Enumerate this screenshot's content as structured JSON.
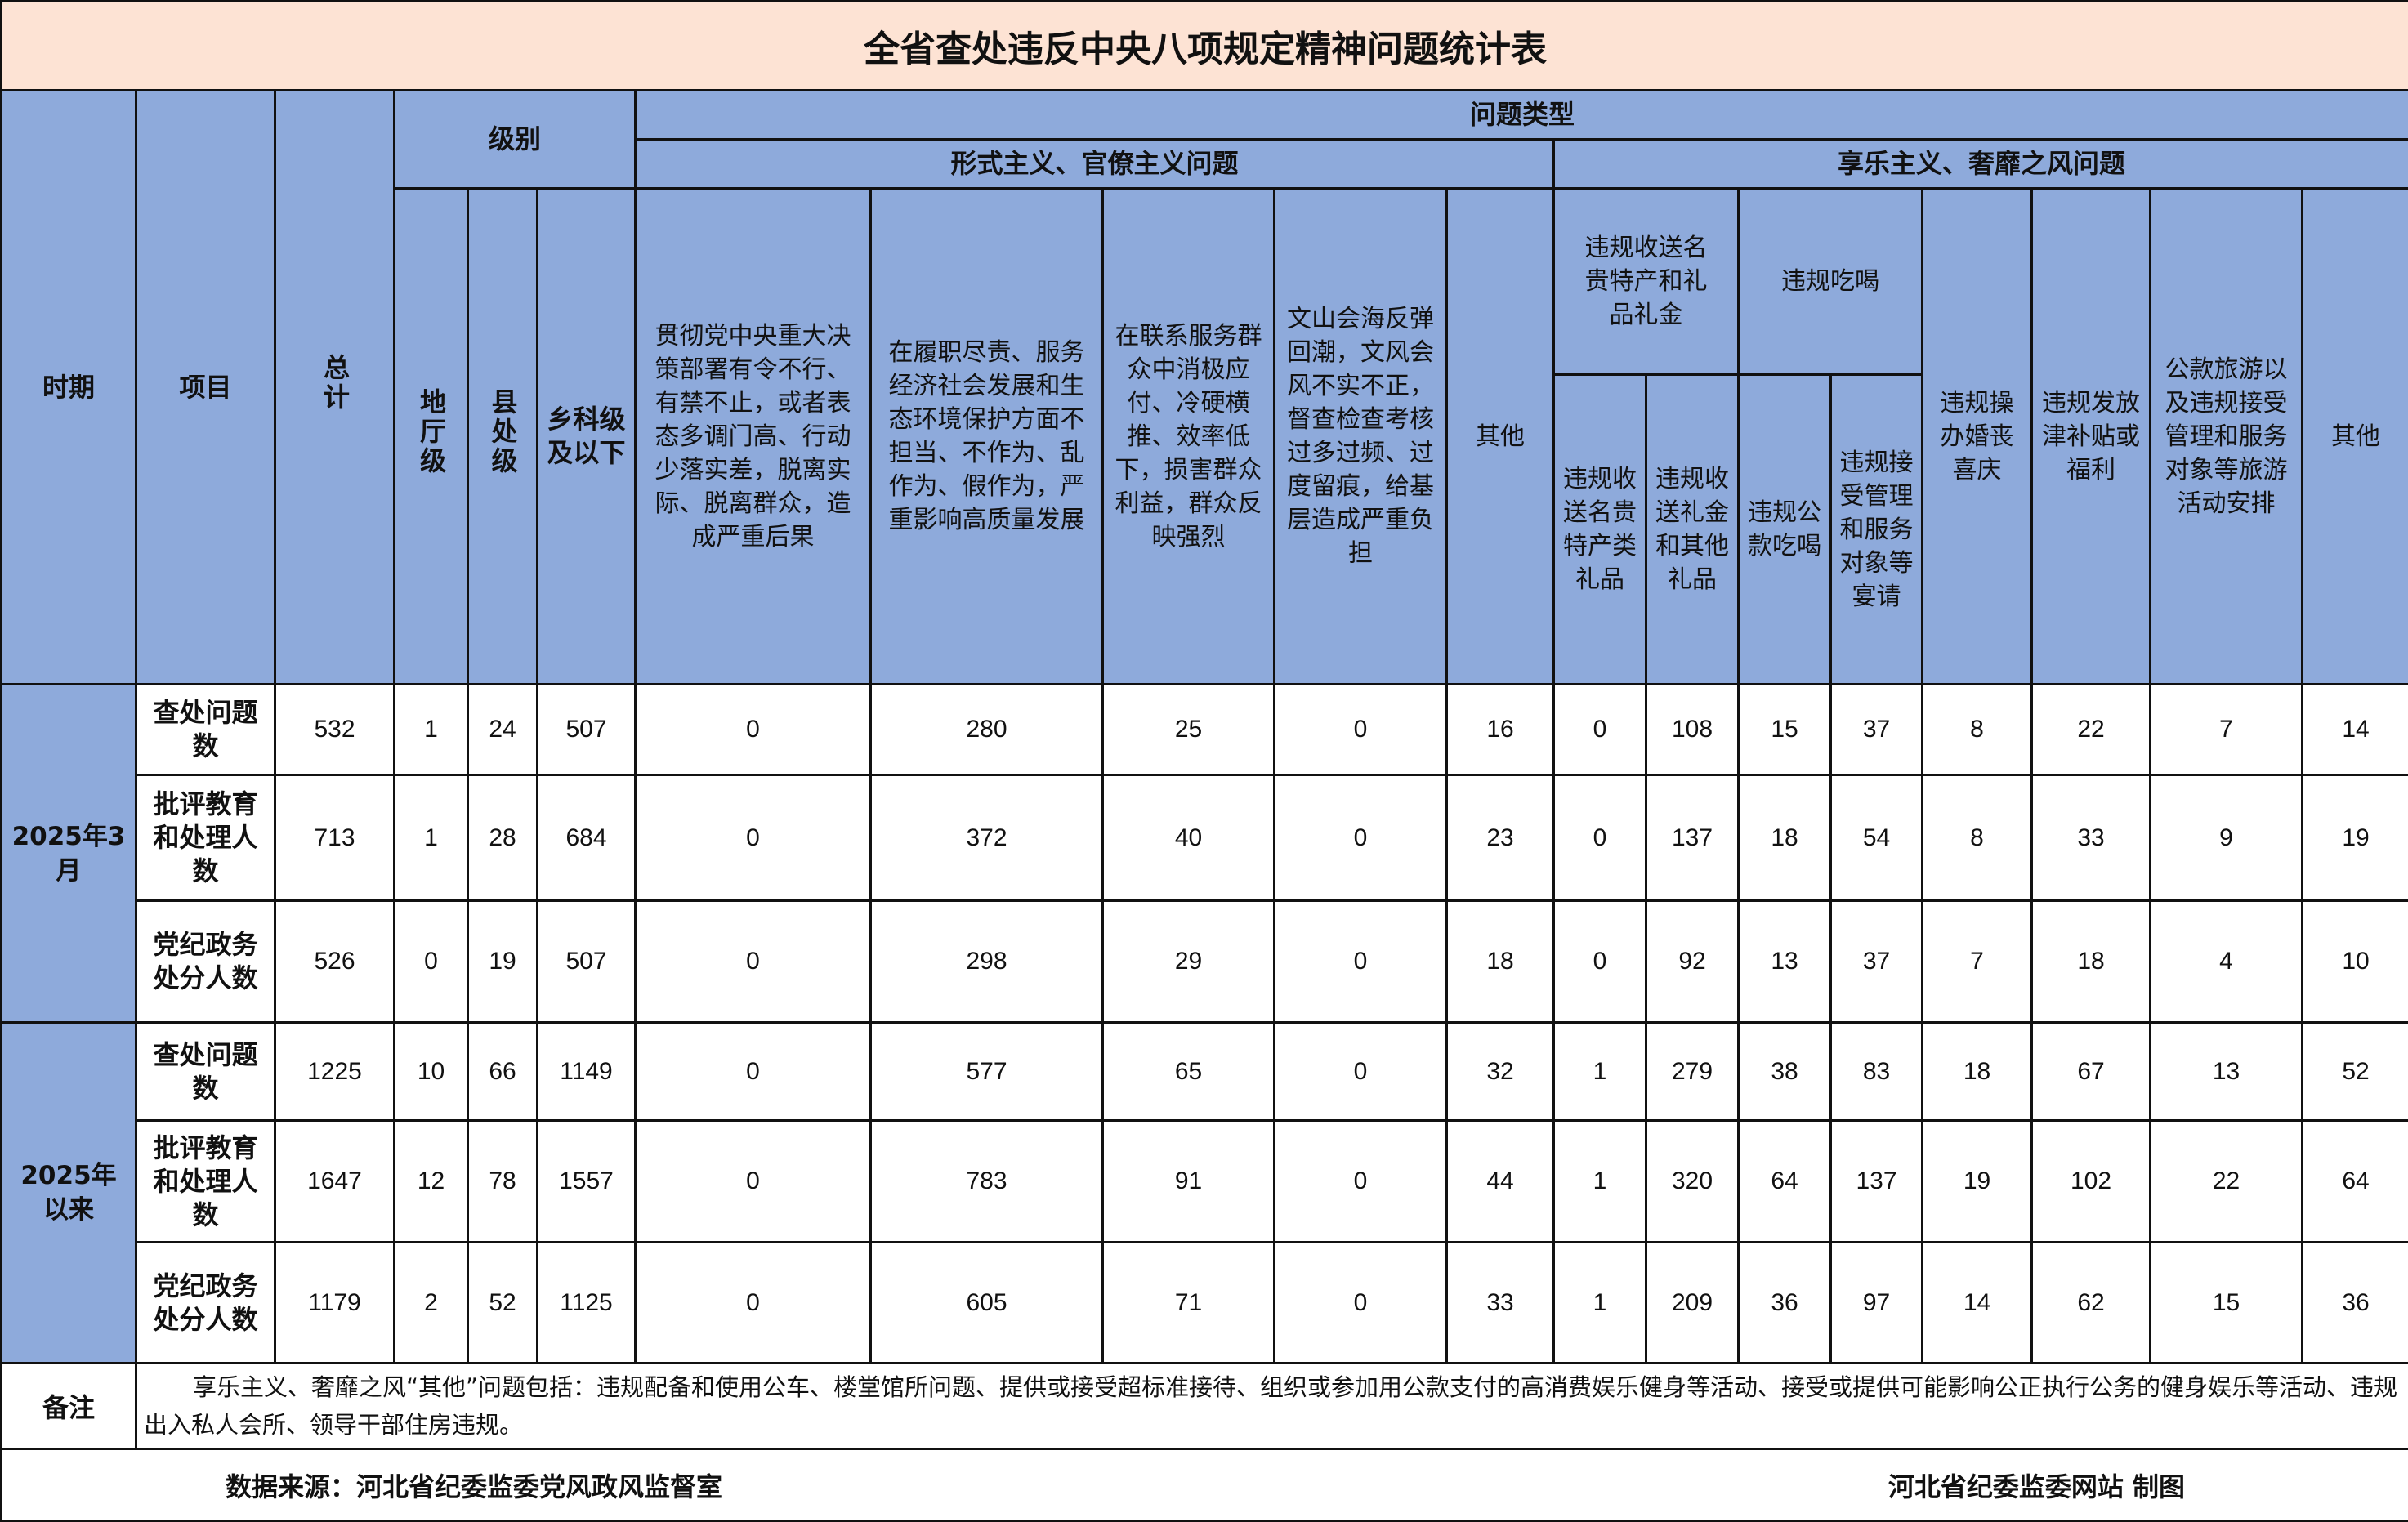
{
  "title": "全省查处违反中央八项规定精神问题统计表",
  "headers": {
    "period": "时期",
    "item": "项目",
    "total": "总计",
    "level": "级别",
    "level_cols": [
      "地厅级",
      "县处级",
      "乡科级及以下"
    ],
    "problem_type": "问题类型",
    "formalism": "形式主义、官僚主义问题",
    "formalism_cols": [
      "贯彻党中央重大决策部署有令不行、有禁不止，或者表态多调门高、行动少落实差，脱离实际、脱离群众，造成严重后果",
      "在履职尽责、服务经济社会发展和生态环境保护方面不担当、不作为、乱作为、假作为，严重影响高质量发展",
      "在联系服务群众中消极应付、冷硬横推、效率低下，损害群众利益，群众反映强烈",
      "文山会海反弹回潮，文风会风不实不正，督查检查考核过多过频、过度留痕，给基层造成严重负担",
      "其他"
    ],
    "hedonism": "享乐主义、奢靡之风问题",
    "gift_group": "违规收送名贵特产和礼品礼金",
    "gift_cols": [
      "违规收送名贵特产类礼品",
      "违规收送礼金和其他礼品"
    ],
    "dining_group": "违规吃喝",
    "dining_cols": [
      "违规公款吃喝",
      "违规接受管理和服务对象等宴请"
    ],
    "hedonism_cols": [
      "违规操办婚丧喜庆",
      "违规发放津补贴或福利",
      "公款旅游以及违规接受管理和服务对象等旅游活动安排",
      "其他"
    ]
  },
  "groups": [
    {
      "period": "2025年3月",
      "rows": [
        {
          "item": "查处问题数",
          "values": [
            532,
            1,
            24,
            507,
            0,
            280,
            25,
            0,
            16,
            0,
            108,
            15,
            37,
            8,
            22,
            7,
            14
          ]
        },
        {
          "item": "批评教育和处理人数",
          "values": [
            713,
            1,
            28,
            684,
            0,
            372,
            40,
            0,
            23,
            0,
            137,
            18,
            54,
            8,
            33,
            9,
            19
          ]
        },
        {
          "item": "党纪政务处分人数",
          "values": [
            526,
            0,
            19,
            507,
            0,
            298,
            29,
            0,
            18,
            0,
            92,
            13,
            37,
            7,
            18,
            4,
            10
          ]
        }
      ]
    },
    {
      "period": "2025年以来",
      "rows": [
        {
          "item": "查处问题数",
          "values": [
            1225,
            10,
            66,
            1149,
            0,
            577,
            65,
            0,
            32,
            1,
            279,
            38,
            83,
            18,
            67,
            13,
            52
          ]
        },
        {
          "item": "批评教育和处理人数",
          "values": [
            1647,
            12,
            78,
            1557,
            0,
            783,
            91,
            0,
            44,
            1,
            320,
            64,
            137,
            19,
            102,
            22,
            64
          ]
        },
        {
          "item": "党纪政务处分人数",
          "values": [
            1179,
            2,
            52,
            1125,
            0,
            605,
            71,
            0,
            33,
            1,
            209,
            36,
            97,
            14,
            62,
            15,
            36
          ]
        }
      ]
    }
  ],
  "note": {
    "label": "备注",
    "text": "享乐主义、奢靡之风“其他”问题包括：违规配备和使用公车、楼堂馆所问题、提供或接受超标准接待、组织或参加用公款支付的高消费娱乐健身等活动、接受或提供可能影响公正执行公务的健身娱乐等活动、违规出入私人会所、领导干部住房违规。"
  },
  "footer": {
    "source": "数据来源：河北省纪委监委党风政风监督室",
    "maker": "河北省纪委监委网站  制图"
  },
  "colors": {
    "header_bg": "#8eaadb",
    "title_bg": "#fde3d4"
  }
}
